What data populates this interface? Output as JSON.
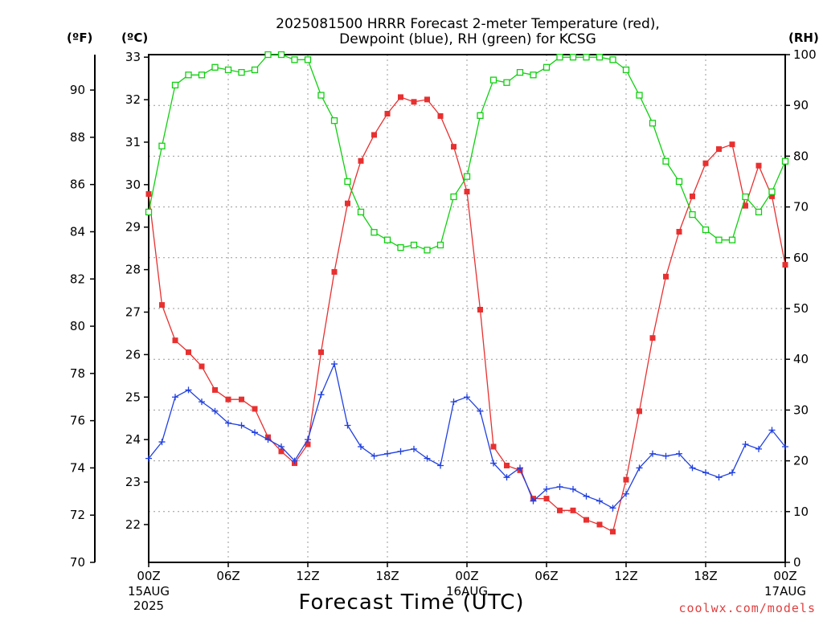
{
  "chart_data": {
    "type": "line",
    "title_line1": "2025081500 HRRR Forecast 2-meter Temperature (red),",
    "title_line2": "Dewpoint (blue), RH (green) for KCSG",
    "xlabel": "Forecast Time (UTC)",
    "credit": "coolwx.com/models",
    "left_unit_f": "(ºF)",
    "left_unit_c": "(ºC)",
    "right_unit": "(RH)",
    "x_hours": [
      0,
      1,
      2,
      3,
      4,
      5,
      6,
      7,
      8,
      9,
      10,
      11,
      12,
      13,
      14,
      15,
      16,
      17,
      18,
      19,
      20,
      21,
      22,
      23,
      24,
      25,
      26,
      27,
      28,
      29,
      30,
      31,
      32,
      33,
      34,
      35,
      36,
      37,
      38,
      39,
      40,
      41,
      42,
      43,
      44,
      45,
      46,
      47,
      48
    ],
    "x_ticks": [
      {
        "hour": 0,
        "label": "00Z",
        "sub1": "15AUG",
        "sub2": "2025"
      },
      {
        "hour": 6,
        "label": "06Z",
        "sub1": "",
        "sub2": ""
      },
      {
        "hour": 12,
        "label": "12Z",
        "sub1": "",
        "sub2": ""
      },
      {
        "hour": 18,
        "label": "18Z",
        "sub1": "",
        "sub2": ""
      },
      {
        "hour": 24,
        "label": "00Z",
        "sub1": "16AUG",
        "sub2": ""
      },
      {
        "hour": 30,
        "label": "06Z",
        "sub1": "",
        "sub2": ""
      },
      {
        "hour": 36,
        "label": "12Z",
        "sub1": "",
        "sub2": ""
      },
      {
        "hour": 42,
        "label": "18Z",
        "sub1": "",
        "sub2": ""
      },
      {
        "hour": 48,
        "label": "00Z",
        "sub1": "17AUG",
        "sub2": ""
      }
    ],
    "ylim_f": [
      70,
      91.5
    ],
    "y_ticks_f": [
      70,
      72,
      74,
      76,
      78,
      80,
      82,
      84,
      86,
      88,
      90
    ],
    "ylim_c": [
      21.11,
      33.06
    ],
    "y_ticks_c": [
      22,
      23,
      24,
      25,
      26,
      27,
      28,
      29,
      30,
      31,
      32,
      33
    ],
    "ylim_rh": [
      0,
      100
    ],
    "y_ticks_rh": [
      0,
      10,
      20,
      30,
      40,
      50,
      60,
      70,
      80,
      90,
      100
    ],
    "grid": true,
    "series": [
      {
        "name": "Temperature (red)",
        "axis": "f",
        "color": "#e83030",
        "marker": "filled-square",
        "values": [
          85.6,
          80.9,
          79.4,
          78.9,
          78.3,
          77.3,
          76.9,
          76.9,
          76.5,
          75.3,
          74.7,
          74.2,
          75.0,
          78.9,
          82.3,
          85.2,
          87.0,
          88.1,
          89.0,
          89.7,
          89.5,
          89.6,
          88.9,
          87.6,
          85.7,
          80.7,
          74.9,
          74.1,
          73.9,
          72.7,
          72.7,
          72.2,
          72.2,
          71.8,
          71.6,
          71.3,
          73.5,
          76.4,
          79.5,
          82.1,
          84.0,
          85.5,
          86.9,
          87.5,
          87.7,
          85.1,
          86.8,
          85.5,
          82.6
        ]
      },
      {
        "name": "Dewpoint (blue)",
        "axis": "f",
        "color": "#2040e0",
        "marker": "plus",
        "values": [
          74.4,
          75.1,
          77.0,
          77.3,
          76.8,
          76.4,
          75.9,
          75.8,
          75.5,
          75.2,
          74.9,
          74.3,
          75.2,
          77.1,
          78.4,
          75.8,
          74.9,
          74.5,
          74.6,
          74.7,
          74.8,
          74.4,
          74.1,
          76.8,
          77.0,
          76.4,
          74.2,
          73.6,
          74.0,
          72.6,
          73.1,
          73.2,
          73.1,
          72.8,
          72.6,
          72.3,
          72.9,
          74.0,
          74.6,
          74.5,
          74.6,
          74.0,
          73.8,
          73.6,
          73.8,
          75.0,
          74.8,
          75.6,
          74.9
        ]
      },
      {
        "name": "RH (green)",
        "axis": "rh",
        "color": "#10d010",
        "marker": "open-square",
        "values": [
          69,
          82,
          94,
          96,
          96,
          97.5,
          97,
          96.5,
          97,
          100,
          100,
          99,
          99,
          92,
          87,
          75,
          69,
          65,
          63.5,
          62,
          62.5,
          61.5,
          62.5,
          72,
          76,
          88,
          95,
          94.5,
          96.5,
          96,
          97.5,
          99.5,
          99.5,
          99.5,
          99.5,
          99,
          97,
          92,
          86.5,
          79,
          75,
          68.5,
          65.5,
          63.5,
          63.5,
          72,
          69,
          73,
          79
        ]
      }
    ]
  }
}
